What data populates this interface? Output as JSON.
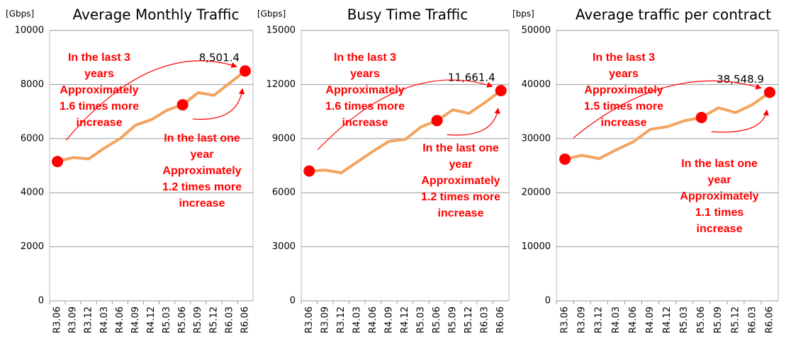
{
  "chart_data": [
    {
      "type": "line",
      "title": "Average Monthly Traffic",
      "y_label": "[Gbps]",
      "categories": [
        "R3.06",
        "R3.09",
        "R3.12",
        "R4.03",
        "R4.06",
        "R4.09",
        "R4.12",
        "R5.03",
        "R5.06",
        "R5.09",
        "R5.12",
        "R6.03",
        "R6.06"
      ],
      "series": [
        {
          "name": "Average Monthly Traffic",
          "color": "#f4a460",
          "values": [
            5150,
            5300,
            5250,
            5650,
            6000,
            6500,
            6700,
            7050,
            7250,
            7700,
            7600,
            8050,
            8501.4
          ],
          "value_labels": [
            null,
            null,
            null,
            null,
            null,
            null,
            null,
            null,
            null,
            null,
            null,
            null,
            "8,501.4"
          ]
        }
      ],
      "highlight": [
        0,
        8,
        12
      ],
      "highlight_color": "#ff0000",
      "ylim": [
        0,
        10000
      ],
      "yticks": [
        0,
        2000,
        4000,
        6000,
        8000,
        10000
      ],
      "grid": true,
      "annotations": [
        [
          "In the last 3",
          "years",
          "Approximately",
          "1.6 times more",
          "increase"
        ],
        [
          "In the last one",
          "year",
          "Approximately",
          "1.2 times more",
          "increase"
        ]
      ]
    },
    {
      "type": "line",
      "title": "Busy Time Traffic",
      "y_label": "[Gbps]",
      "categories": [
        "R3.06",
        "R3.09",
        "R3.12",
        "R4.03",
        "R4.06",
        "R4.09",
        "R4.12",
        "R5.03",
        "R5.06",
        "R5.09",
        "R5.12",
        "R6.03",
        "R6.06"
      ],
      "series": [
        {
          "name": "Busy Time Traffic",
          "color": "#f4a460",
          "values": [
            7200,
            7250,
            7100,
            7700,
            8300,
            8850,
            8950,
            9650,
            10000,
            10600,
            10400,
            11000,
            11661.4
          ],
          "value_labels": [
            null,
            null,
            null,
            null,
            null,
            null,
            null,
            null,
            null,
            null,
            null,
            null,
            "11,661.4"
          ]
        }
      ],
      "highlight": [
        0,
        8,
        12
      ],
      "highlight_color": "#ff0000",
      "ylim": [
        0,
        15000
      ],
      "yticks": [
        0,
        3000,
        6000,
        9000,
        12000,
        15000
      ],
      "grid": true,
      "annotations": [
        [
          "In the last 3",
          "years",
          "Approximately",
          "1.6 times more",
          "increase"
        ],
        [
          "In the last one",
          "year",
          "Approximately",
          "1.2 times more",
          "increase"
        ]
      ]
    },
    {
      "type": "line",
      "title": "Average traffic per contract",
      "y_label": "[bps]",
      "categories": [
        "R3.06",
        "R3.09",
        "R3.12",
        "R4.03",
        "R4.06",
        "R4.09",
        "R4.12",
        "R5.03",
        "R5.06",
        "R5.09",
        "R5.12",
        "R6.03",
        "R6.06"
      ],
      "series": [
        {
          "name": "Average traffic per contract",
          "color": "#f4a460",
          "values": [
            26200,
            26900,
            26300,
            27900,
            29400,
            31700,
            32200,
            33300,
            33900,
            35700,
            34800,
            36300,
            38548.9
          ],
          "value_labels": [
            null,
            null,
            null,
            null,
            null,
            null,
            null,
            null,
            null,
            null,
            null,
            null,
            "38,548.9"
          ]
        }
      ],
      "highlight": [
        0,
        8,
        12
      ],
      "highlight_color": "#ff0000",
      "ylim": [
        0,
        50000
      ],
      "yticks": [
        0,
        10000,
        20000,
        30000,
        40000,
        50000
      ],
      "grid": true,
      "annotations": [
        [
          "In the last 3",
          "years",
          "Approximately",
          "1.5 times more",
          "increase"
        ],
        [
          "In the last one",
          "year",
          "Approximately",
          "1.1 times",
          "increase"
        ]
      ]
    }
  ]
}
